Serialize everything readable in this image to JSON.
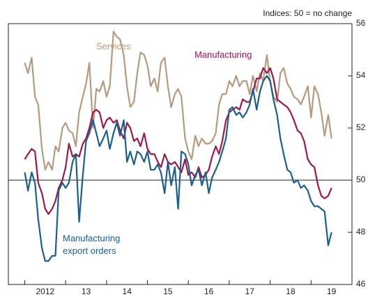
{
  "chart_data": {
    "type": "line",
    "annotation": "Indices: 50 = no change",
    "x": [
      2012,
      2012.08,
      2012.17,
      2012.25,
      2012.33,
      2012.42,
      2012.5,
      2012.58,
      2012.67,
      2012.75,
      2012.83,
      2012.92,
      2013,
      2013.08,
      2013.17,
      2013.25,
      2013.33,
      2013.42,
      2013.5,
      2013.58,
      2013.67,
      2013.75,
      2013.83,
      2013.92,
      2014,
      2014.08,
      2014.17,
      2014.25,
      2014.33,
      2014.42,
      2014.5,
      2014.58,
      2014.67,
      2014.75,
      2014.83,
      2014.92,
      2015,
      2015.08,
      2015.17,
      2015.25,
      2015.33,
      2015.42,
      2015.5,
      2015.58,
      2015.67,
      2015.75,
      2015.83,
      2015.92,
      2016,
      2016.08,
      2016.17,
      2016.25,
      2016.33,
      2016.42,
      2016.5,
      2016.58,
      2016.67,
      2016.75,
      2016.83,
      2016.92,
      2017,
      2017.08,
      2017.17,
      2017.25,
      2017.33,
      2017.42,
      2017.5,
      2017.58,
      2017.67,
      2017.75,
      2017.83,
      2017.92,
      2018,
      2018.08,
      2018.17,
      2018.25,
      2018.33,
      2018.42,
      2018.5,
      2018.58,
      2018.67,
      2018.75,
      2018.83,
      2018.92,
      2019,
      2019.08,
      2019.17,
      2019.25,
      2019.33,
      2019.42,
      2019.5
    ],
    "series": [
      {
        "name": "Services",
        "color": "#b59a7e",
        "values": [
          54.5,
          54.1,
          54.7,
          53.2,
          52.9,
          51.2,
          50.4,
          50.7,
          50.4,
          51.3,
          51.1,
          52.0,
          52.2,
          51.9,
          51.8,
          51.3,
          52.6,
          53.2,
          53.7,
          54.5,
          52.0,
          53.5,
          53.4,
          53.8,
          53.2,
          53.6,
          55.7,
          55.5,
          55.4,
          54.8,
          53.6,
          52.8,
          53.0,
          54.1,
          54.9,
          54.8,
          54.4,
          53.6,
          53.9,
          53.4,
          54.5,
          54.7,
          53.6,
          52.8,
          53.3,
          53.5,
          53.2,
          51.6,
          51.1,
          50.8,
          51.7,
          51.3,
          51.6,
          51.4,
          51.4,
          51.5,
          51.8,
          52.9,
          53.3,
          53.3,
          53.8,
          53.6,
          54.0,
          53.6,
          53.8,
          53.8,
          53.3,
          54.0,
          53.4,
          54.1,
          53.8,
          54.8,
          53.8,
          53.2,
          53.0,
          54.1,
          54.3,
          53.7,
          53.5,
          53.2,
          53.1,
          52.9,
          53.2,
          53.6,
          52.4,
          53.6,
          53.3,
          52.6,
          51.7,
          52.5,
          51.6
        ]
      },
      {
        "name": "Manufacturing",
        "color": "#a0174a",
        "values": [
          50.8,
          51.0,
          51.2,
          51.1,
          49.9,
          49.5,
          48.9,
          48.7,
          48.9,
          49.2,
          49.7,
          50.0,
          50.5,
          51.4,
          50.9,
          51.0,
          50.9,
          51.4,
          51.6,
          52.0,
          52.6,
          52.7,
          52.6,
          52.0,
          52.3,
          52.4,
          52.2,
          52.3,
          51.9,
          51.6,
          52.2,
          52.0,
          51.5,
          51.6,
          51.3,
          51.8,
          51.2,
          51.0,
          51.0,
          50.7,
          50.5,
          51.0,
          50.7,
          50.6,
          50.7,
          50.5,
          50.3,
          50.8,
          50.2,
          50.3,
          50.1,
          50.5,
          50.1,
          50.2,
          50.4,
          50.9,
          51.3,
          51.0,
          51.5,
          52.3,
          52.6,
          52.7,
          52.8,
          52.7,
          53.1,
          53.0,
          53.0,
          53.4,
          53.9,
          53.9,
          54.3,
          54.1,
          54.3,
          53.9,
          53.1,
          53.0,
          52.9,
          52.8,
          52.6,
          52.3,
          51.9,
          51.8,
          51.5,
          50.8,
          50.6,
          50.5,
          49.8,
          49.4,
          49.3,
          49.4,
          49.7
        ]
      },
      {
        "name": "Manufacturing export orders",
        "color": "#1a5f8e",
        "values": [
          50.3,
          49.6,
          50.3,
          49.9,
          48.5,
          47.4,
          46.9,
          46.9,
          47.1,
          47.1,
          49.6,
          49.9,
          49.7,
          49.9,
          50.7,
          51.0,
          48.4,
          50.2,
          51.5,
          51.8,
          52.3,
          51.8,
          51.3,
          51.6,
          51.9,
          51.2,
          51.8,
          52.2,
          51.7,
          52.3,
          50.7,
          51.1,
          50.6,
          51.1,
          51.0,
          50.7,
          51.1,
          50.4,
          50.4,
          50.6,
          50.3,
          49.5,
          50.7,
          49.8,
          50.5,
          48.9,
          51.1,
          51.0,
          50.6,
          49.8,
          50.2,
          50.4,
          49.8,
          50.3,
          49.5,
          50.1,
          50.4,
          50.7,
          51.1,
          51.6,
          52.7,
          52.8,
          52.5,
          52.6,
          52.4,
          52.6,
          52.9,
          53.5,
          52.7,
          53.4,
          53.8,
          54.0,
          53.8,
          53.1,
          52.5,
          51.6,
          51.0,
          50.4,
          50.3,
          49.9,
          50.0,
          49.7,
          49.8,
          49.6,
          49.2,
          49.0,
          49.0,
          48.9,
          48.8,
          47.5,
          48.0
        ]
      }
    ],
    "xlim": [
      2011.6,
      2020
    ],
    "xticks": [
      {
        "value": 2012.5,
        "label": "2012"
      },
      {
        "value": 2013.5,
        "label": "13"
      },
      {
        "value": 2014.5,
        "label": "14"
      },
      {
        "value": 2015.5,
        "label": "15"
      },
      {
        "value": 2016.5,
        "label": "16"
      },
      {
        "value": 2017.5,
        "label": "17"
      },
      {
        "value": 2018.5,
        "label": "18"
      },
      {
        "value": 2019.5,
        "label": "19"
      }
    ],
    "xtick_marks": [
      2012,
      2013,
      2014,
      2015,
      2016,
      2017,
      2018,
      2019
    ],
    "ylim": [
      46,
      56
    ],
    "yticks": [
      46,
      48,
      50,
      52,
      54,
      56
    ],
    "reference_line": 50
  }
}
